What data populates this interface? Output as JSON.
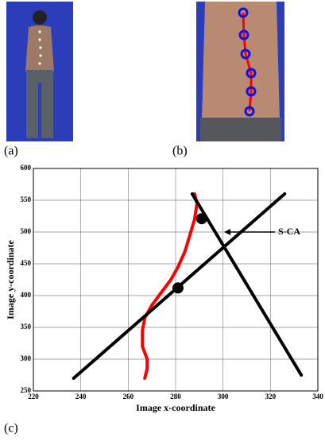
{
  "panels": {
    "a": "(a)",
    "b": "(b)",
    "c": "(c)"
  },
  "chart_data": {
    "type": "line",
    "x_label": "Image x-coordinate",
    "y_label": "Image y-coordinate",
    "annotation": "S-CA",
    "xlim": [
      220,
      340
    ],
    "xticks": [
      220,
      240,
      260,
      280,
      300,
      320,
      340
    ],
    "ylim": [
      250,
      600
    ],
    "yticks": [
      250,
      300,
      350,
      400,
      450,
      500,
      550,
      600
    ],
    "grid": true,
    "series": [
      {
        "color": "#ff0000",
        "style": "line",
        "width": 4,
        "x": [
          288,
          289,
          288,
          286,
          284,
          281,
          278,
          274,
          270,
          267,
          266,
          266,
          268,
          268,
          267
        ],
        "values": [
          560,
          545,
          520,
          495,
          470,
          445,
          425,
          405,
          385,
          365,
          345,
          320,
          300,
          285,
          270
        ]
      },
      {
        "color": "#000000",
        "style": "line",
        "width": 4,
        "x": [
          237,
          326
        ],
        "values": [
          270,
          560
        ]
      },
      {
        "color": "#000000",
        "style": "line",
        "width": 4,
        "x": [
          287,
          333
        ],
        "values": [
          560,
          275
        ]
      },
      {
        "color": "#000000",
        "style": "markers",
        "x": [
          281,
          291
        ],
        "values": [
          412,
          521
        ]
      }
    ]
  }
}
